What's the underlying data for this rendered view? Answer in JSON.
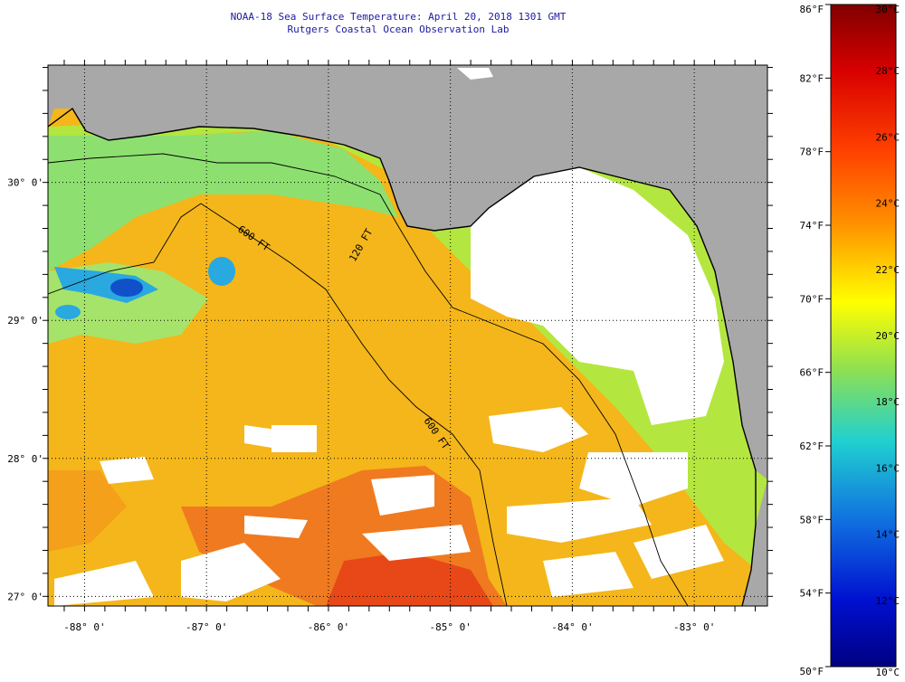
{
  "title": {
    "line1": "NOAA-18 Sea Surface Temperature:  April 20, 2018 1301 GMT",
    "line2": "Rutgers Coastal Ocean Observation Lab"
  },
  "map": {
    "lon_range": [
      -88.3,
      -82.4
    ],
    "lat_range": [
      26.93,
      30.85
    ],
    "lon_ticks": [
      {
        "value": -88,
        "label": "-88° 0'"
      },
      {
        "value": -87,
        "label": "-87° 0'"
      },
      {
        "value": -86,
        "label": "-86° 0'"
      },
      {
        "value": -85,
        "label": "-85° 0'"
      },
      {
        "value": -84,
        "label": "-84° 0'"
      },
      {
        "value": -83,
        "label": "-83° 0'"
      }
    ],
    "lat_ticks": [
      {
        "value": 30,
        "label": "30° 0'"
      },
      {
        "value": 29,
        "label": "29° 0'"
      },
      {
        "value": 28,
        "label": "28° 0'"
      },
      {
        "value": 27,
        "label": "27° 0'"
      }
    ],
    "contours": [
      {
        "name": "120-ft",
        "label": "120 FT"
      },
      {
        "name": "600-ft",
        "label": "600 FT"
      }
    ],
    "colors": {
      "land": "#a8a8a8",
      "cloud": "#ffffff",
      "shelf": "#8de070",
      "offshore": "#f4b61a",
      "warm": "#f06020",
      "cool": "#2aa8e0"
    }
  },
  "legend": {
    "fahrenheit": [
      "86°F",
      "82°F",
      "78°F",
      "74°F",
      "70°F",
      "66°F",
      "62°F",
      "58°F",
      "54°F",
      "50°F"
    ],
    "celsius": [
      "30°C",
      "28°C",
      "26°C",
      "24°C",
      "22°C",
      "20°C",
      "18°C",
      "16°C",
      "14°C",
      "12°C",
      "10°C"
    ]
  }
}
